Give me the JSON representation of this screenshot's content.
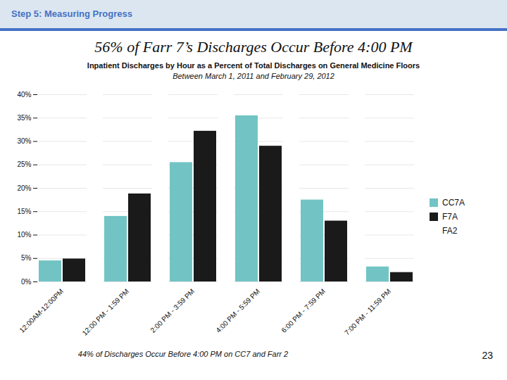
{
  "chart_data": {
    "type": "bar",
    "header": "Step 5:  Measuring Progress",
    "title": "56% of Farr 7’s Discharges Occur Before 4:00 PM",
    "subtitle": [
      "Inpatient Discharges by Hour as a Percent of Total Discharges on General Medicine Floors",
      "Between March 1, 2011 and February 29, 2012"
    ],
    "footer_note": "44% of Discharges Occur Before 4:00 PM on CC7 and Farr 2",
    "page_number": "23",
    "categories": [
      "12:00AM-12:00PM",
      "12:00 PM - 1:59 PM",
      "2:00 PM - 3:59 PM",
      "4:00 PM - 5:59 PM",
      "6:00 PM - 7:59 PM",
      "7:00 PM - 11:59 PM"
    ],
    "series": [
      {
        "name": "CC7A",
        "color": "#72C4C4",
        "values": [
          4.5,
          14.0,
          25.5,
          35.5,
          17.5,
          3.2
        ]
      },
      {
        "name": "F7A",
        "color": "#1a1a1a",
        "values": [
          4.9,
          18.8,
          32.2,
          29.0,
          13.0,
          2.0
        ]
      },
      {
        "name": "FA2",
        "values": [
          null,
          null,
          null,
          null,
          null,
          null
        ]
      }
    ],
    "ylim": [
      0,
      40
    ],
    "yticks": [
      {
        "value": 0,
        "label": "0%"
      },
      {
        "value": 5,
        "label": "5%"
      },
      {
        "value": 10,
        "label": "10%"
      },
      {
        "value": 15,
        "label": "15%"
      },
      {
        "value": 20,
        "label": "20%"
      },
      {
        "value": 25,
        "label": "25%"
      },
      {
        "value": 30,
        "label": "30%"
      },
      {
        "value": 35,
        "label": "35%"
      },
      {
        "value": 40,
        "label": "40%"
      }
    ],
    "grid": true,
    "legend": "right"
  }
}
